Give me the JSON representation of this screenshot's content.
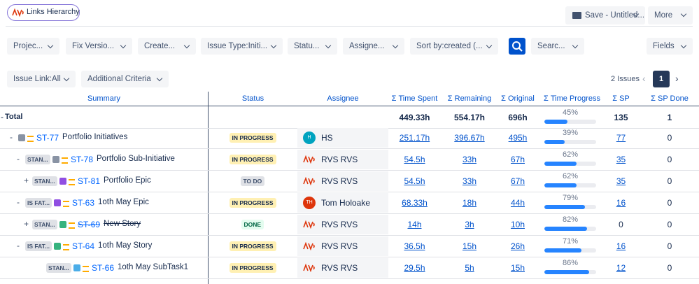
{
  "header": {
    "app_button": "Links Hierarchy",
    "save": "Save - Untitled...",
    "more": "More"
  },
  "filters": [
    "Projec...",
    "Fix Versio...",
    "Create...",
    "Issue Type:Initi...",
    "Statu...",
    "Assigne...",
    "Sort by:created (...",
    "Searc..."
  ],
  "fields": "Fields",
  "filters2": [
    "Issue Link:All",
    "Additional Criteria"
  ],
  "pagination": {
    "count": "2 Issues",
    "page": "1"
  },
  "table": {
    "columns": [
      "Summary",
      "Status",
      "Assignee",
      "Σ Time Spent",
      "Σ Remaining",
      "Σ Original",
      "Σ Time Progress",
      "Σ SP",
      "Σ SP Done"
    ],
    "total": {
      "toggle": "-",
      "label": "Total",
      "spent": "449.33h",
      "remaining": "554.17h",
      "original": "696h",
      "progress": "45%",
      "sp": "135",
      "sp_done": "1"
    },
    "rows": [
      {
        "toggle": "-",
        "badge": null,
        "key": "ST-77",
        "summary": "Portfolio Initiatives",
        "status": "IN PROGRESS",
        "avatar": "H",
        "assignee": "HS",
        "spent": "251.17h",
        "remaining": "396.67h",
        "original": "495h",
        "progress": "39%",
        "sp": "77",
        "sp_done": "0"
      },
      {
        "toggle": "-",
        "badge": "STAN...",
        "key": "ST-78",
        "summary": "Portfolio Sub-Initiative",
        "status": "IN PROGRESS",
        "avatar": null,
        "assignee": "RVS RVS",
        "spent": "54.5h",
        "remaining": "33h",
        "original": "67h",
        "progress": "62%",
        "sp": "35",
        "sp_done": "0"
      },
      {
        "toggle": "+",
        "badge": "STAN...",
        "key": "ST-81",
        "summary": "Portfolio Epic",
        "status": "TO DO",
        "avatar": null,
        "assignee": "RVS RVS",
        "spent": "54.5h",
        "remaining": "33h",
        "original": "67h",
        "progress": "62%",
        "sp": "35",
        "sp_done": "0"
      },
      {
        "toggle": "-",
        "badge": "IS FAT...",
        "key": "ST-63",
        "summary": "1oth May Epic",
        "status": "IN PROGRESS",
        "avatar": "TH",
        "assignee": "Tom Holoake",
        "spent": "68.33h",
        "remaining": "18h",
        "original": "44h",
        "progress": "79%",
        "sp": "16",
        "sp_done": "0"
      },
      {
        "toggle": "+",
        "badge": "STAN...",
        "key": "ST-69",
        "summary": "New Story",
        "status": "DONE",
        "avatar": null,
        "assignee": "RVS RVS",
        "spent": "14h",
        "remaining": "3h",
        "original": "10h",
        "progress": "82%",
        "sp": "0",
        "sp_done": "0"
      },
      {
        "toggle": "-",
        "badge": "IS FAT...",
        "key": "ST-64",
        "summary": "1oth May Story",
        "status": "IN PROGRESS",
        "avatar": null,
        "assignee": "RVS RVS",
        "spent": "36.5h",
        "remaining": "15h",
        "original": "26h",
        "progress": "71%",
        "sp": "16",
        "sp_done": "0"
      },
      {
        "toggle": null,
        "badge": "STAN...",
        "key": "ST-66",
        "summary": "1oth May SubTask1",
        "status": "IN PROGRESS",
        "avatar": null,
        "assignee": "RVS RVS",
        "spent": "29.5h",
        "remaining": "5h",
        "original": "15h",
        "progress": "86%",
        "sp": "12",
        "sp_done": "0"
      }
    ]
  }
}
